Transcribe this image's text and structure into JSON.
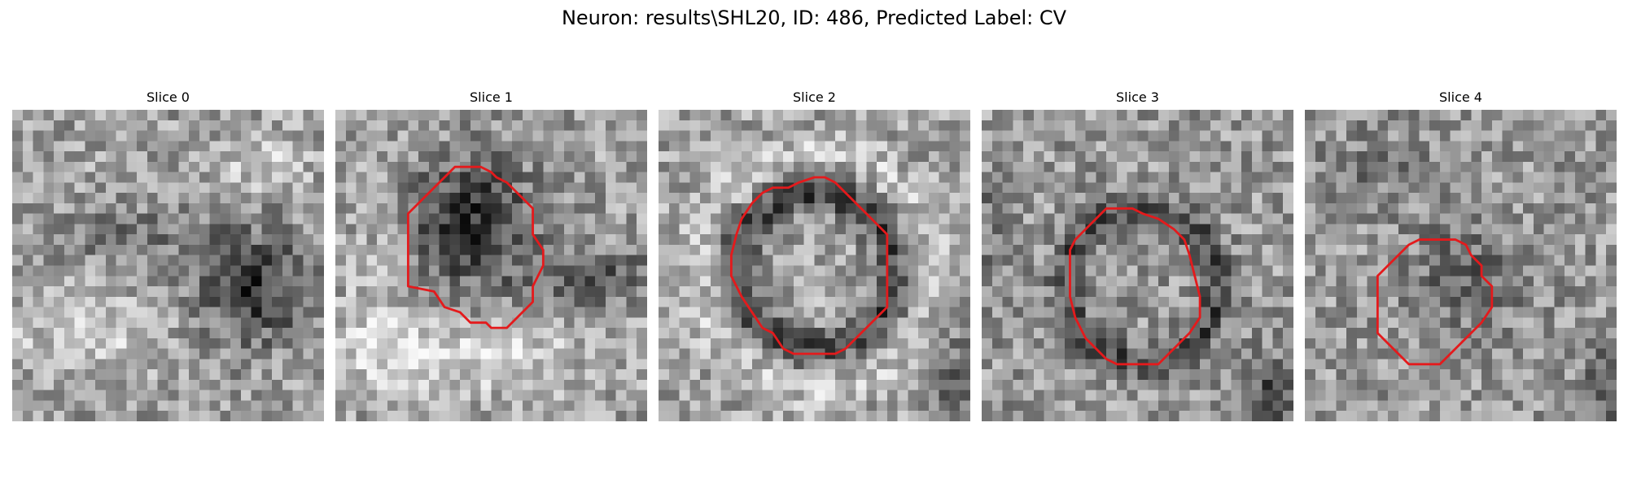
{
  "figure": {
    "title": "Neuron: results\\SHL20, ID: 486, Predicted Label: CV"
  },
  "panels": [
    {
      "title": "Slice 0",
      "contour": "none"
    },
    {
      "title": "Slice 1",
      "contour": "red"
    },
    {
      "title": "Slice 2",
      "contour": "red"
    },
    {
      "title": "Slice 3",
      "contour": "red"
    },
    {
      "title": "Slice 4",
      "contour": "red"
    }
  ],
  "colors": {
    "contour": "#e41a1c",
    "colormap": "grayscale"
  }
}
